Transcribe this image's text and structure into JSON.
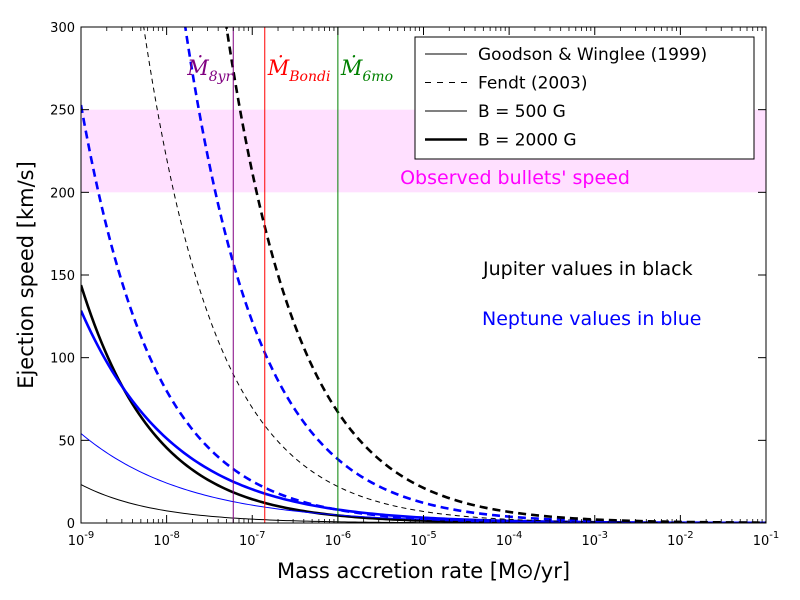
{
  "chart_data": {
    "type": "line",
    "xscale": "log",
    "xlim": [
      1e-09,
      0.1
    ],
    "ylim": [
      0,
      300
    ],
    "xlabel": "Mass accretion rate [M⊙/yr]",
    "ylabel": "Ejection speed [km/s]",
    "x_ticks": [
      {
        "base": "10",
        "exp": "-9"
      },
      {
        "base": "10",
        "exp": "-8"
      },
      {
        "base": "10",
        "exp": "-7"
      },
      {
        "base": "10",
        "exp": "-6"
      },
      {
        "base": "10",
        "exp": "-5"
      },
      {
        "base": "10",
        "exp": "-4"
      },
      {
        "base": "10",
        "exp": "-3"
      },
      {
        "base": "10",
        "exp": "-2"
      },
      {
        "base": "10",
        "exp": "-1"
      }
    ],
    "y_ticks": [
      "0",
      "50",
      "100",
      "150",
      "200",
      "250",
      "300"
    ],
    "band": {
      "y0": 200,
      "y1": 250,
      "color": "#ff00ff",
      "label": "Observed bullets' speed"
    },
    "vlines": [
      {
        "x": 6e-08,
        "color": "#800080",
        "main": "Ṁ",
        "sub": "8yr"
      },
      {
        "x": 1.4e-07,
        "color": "#ff0000",
        "main": "Ṁ",
        "sub": "Bondi"
      },
      {
        "x": 1e-06,
        "color": "#008000",
        "main": "Ṁ",
        "sub": "6mo"
      }
    ],
    "series": [
      {
        "name": "Goodson & Winglee (1999), B = 500 G, Jupiter",
        "color": "#000000",
        "style": "solid",
        "width": "thin",
        "x_at_y300": 6e-12,
        "slope": -0.5
      },
      {
        "name": "Goodson & Winglee (1999), B = 2000 G, Jupiter",
        "color": "#000000",
        "style": "solid",
        "width": "thick",
        "x_at_y300": 2.3e-10,
        "slope": -0.5
      },
      {
        "name": "Goodson & Winglee (1999), B = 500 G, Neptune",
        "color": "#0000ff",
        "style": "solid",
        "width": "thin",
        "x_at_y300": 7.5e-12,
        "slope": -0.35
      },
      {
        "name": "Goodson & Winglee (1999), B = 2000 G, Neptune",
        "color": "#0000ff",
        "style": "solid",
        "width": "thick",
        "x_at_y300": 1.2e-10,
        "slope": -0.4
      },
      {
        "name": "Goodson & Winglee (1999), B = 2000 G, Neptune (overlap)",
        "color": "#0000ff",
        "style": "dashed",
        "width": "thick",
        "x_at_y300": 7.1e-10,
        "slope": -0.5
      },
      {
        "name": "Fendt (2003), B = 500 G, Jupiter",
        "color": "#000000",
        "style": "dashed",
        "width": "thin",
        "x_at_y300": 5.4e-09,
        "slope": -0.5
      },
      {
        "name": "Fendt (2003), B = 2000 G, Neptune",
        "color": "#0000ff",
        "style": "dashed",
        "width": "thick",
        "x_at_y300": 1.65e-08,
        "slope": -0.5
      },
      {
        "name": "Fendt (2003), B = 2000 G, Jupiter",
        "color": "#000000",
        "style": "dashed",
        "width": "thick",
        "x_at_y300": 5e-08,
        "slope": -0.5
      }
    ],
    "legend": {
      "position": "upper right",
      "entries": [
        {
          "label": "Goodson & Winglee (1999)",
          "style": "solid",
          "width": "thin"
        },
        {
          "label": "Fendt (2003)",
          "style": "dashed",
          "width": "thin"
        },
        {
          "label": "B = 500 G",
          "style": "solid",
          "width": "thin"
        },
        {
          "label": "B = 2000 G",
          "style": "solid",
          "width": "thick"
        }
      ]
    },
    "annotations": [
      {
        "text": "Jupiter values in black",
        "color": "#000000"
      },
      {
        "text": "Neptune values in blue",
        "color": "#0000ff"
      }
    ]
  }
}
